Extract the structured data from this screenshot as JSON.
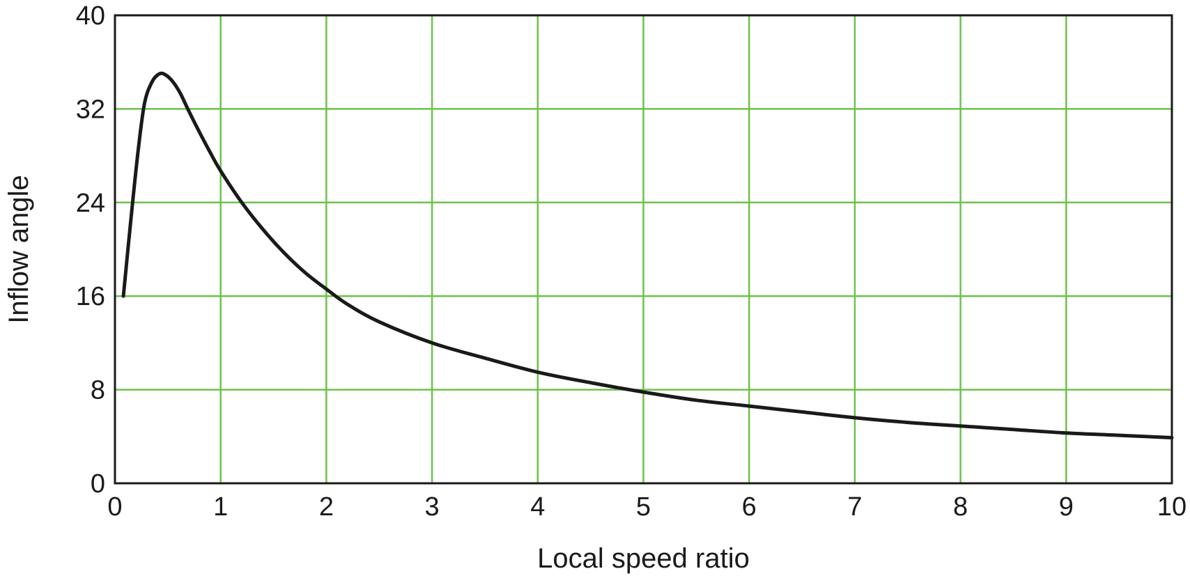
{
  "chart_data": {
    "type": "line",
    "title": "",
    "xlabel": "Local speed ratio",
    "ylabel": "Inflow angle",
    "xlim": [
      0,
      10
    ],
    "ylim": [
      0,
      40
    ],
    "x_ticks": [
      0,
      1,
      2,
      3,
      4,
      5,
      6,
      7,
      8,
      9,
      10
    ],
    "y_ticks": [
      0,
      8,
      16,
      24,
      32,
      40
    ],
    "grid": true,
    "colors": {
      "grid": "#6cc24a",
      "line": "#1a1a1a",
      "axes": "#1a1a1a"
    },
    "series": [
      {
        "x": [
          0.08,
          0.15,
          0.22,
          0.28,
          0.35,
          0.42,
          0.48,
          0.55,
          0.62,
          0.7,
          0.8,
          0.9,
          1.0,
          1.2,
          1.4,
          1.6,
          1.8,
          2.0,
          2.2,
          2.5,
          3.0,
          3.5,
          4.0,
          4.5,
          5.0,
          5.5,
          6.0,
          6.5,
          7.0,
          7.5,
          8.0,
          8.5,
          9.0,
          9.5,
          10.0
        ],
        "y": [
          16.0,
          22.5,
          28.5,
          32.5,
          34.3,
          35.0,
          34.9,
          34.3,
          33.3,
          31.8,
          30.0,
          28.3,
          26.7,
          24.0,
          21.7,
          19.7,
          18.0,
          16.6,
          15.3,
          13.8,
          12.0,
          10.7,
          9.5,
          8.6,
          7.8,
          7.1,
          6.6,
          6.1,
          5.6,
          5.2,
          4.9,
          4.6,
          4.3,
          4.1,
          3.9
        ]
      }
    ]
  }
}
